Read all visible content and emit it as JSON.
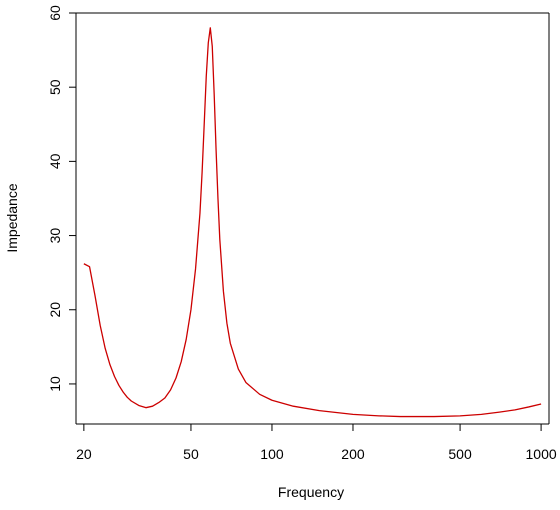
{
  "chart_data": {
    "type": "line",
    "title": "",
    "xlabel": "Frequency",
    "ylabel": "Impedance",
    "x_scale": "log",
    "xlim": [
      18.7,
      1070
    ],
    "ylim": [
      4.6,
      60
    ],
    "x_ticks": [
      20,
      50,
      100,
      200,
      500,
      1000
    ],
    "y_ticks": [
      10,
      20,
      30,
      40,
      50,
      60
    ],
    "grid": false,
    "legend": "none",
    "color": "#cc0000",
    "series": [
      {
        "x": [
          20,
          21,
          22,
          23,
          24,
          25,
          26,
          27,
          28,
          29,
          30,
          32,
          34,
          36,
          38,
          40,
          42,
          44,
          46,
          48,
          50,
          52,
          54,
          55,
          56,
          57,
          58,
          59,
          60,
          61,
          62,
          63,
          64,
          66,
          68,
          70,
          75,
          80,
          90,
          100,
          120,
          150,
          200,
          250,
          300,
          400,
          500,
          600,
          700,
          800,
          900,
          1000
        ],
        "y": [
          26.2,
          25.8,
          21.9,
          17.9,
          14.8,
          12.6,
          11.0,
          9.8,
          8.9,
          8.2,
          7.7,
          7.1,
          6.8,
          7.0,
          7.5,
          8.1,
          9.2,
          10.8,
          13.0,
          16.0,
          20.0,
          25.5,
          33.0,
          38.5,
          45.0,
          51.5,
          56.0,
          58.0,
          55.5,
          49.0,
          41.5,
          35.0,
          29.5,
          22.5,
          18.2,
          15.5,
          12.0,
          10.2,
          8.6,
          7.8,
          7.0,
          6.4,
          5.9,
          5.7,
          5.6,
          5.6,
          5.7,
          5.9,
          6.2,
          6.5,
          6.9,
          7.3
        ]
      }
    ]
  }
}
